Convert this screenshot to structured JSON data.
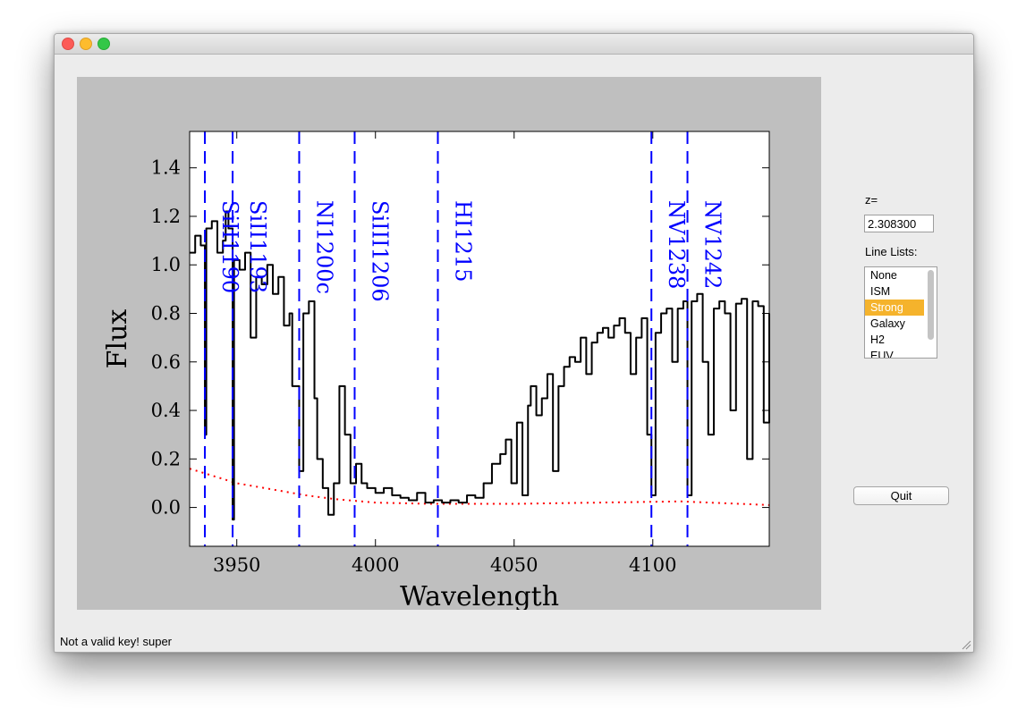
{
  "window": {
    "title": ""
  },
  "side_panel": {
    "z_label": "z=",
    "z_value": "2.308300",
    "line_lists_label": "Line Lists:",
    "line_lists": [
      "None",
      "ISM",
      "Strong",
      "Galaxy",
      "H2",
      "EUV"
    ],
    "selected_line_list": "Strong",
    "quit_label": "Quit"
  },
  "status": {
    "text": "Not a valid key!  super"
  },
  "colors": {
    "figure_bg": "#bfbfbf",
    "spectrum": "#000000",
    "lines": "#0000ff",
    "error": "#ff0000",
    "selection": "#f5b32c"
  },
  "chart_data": {
    "type": "line",
    "xlabel": "Wavelength",
    "ylabel": "Flux",
    "xlim": [
      3933,
      4142
    ],
    "ylim": [
      -0.16,
      1.55
    ],
    "xticks": [
      3950,
      4000,
      4050,
      4100
    ],
    "yticks": [
      0.0,
      0.2,
      0.4,
      0.6,
      0.8,
      1.0,
      1.2,
      1.4
    ],
    "ytick_labels": [
      "0.0",
      "0.2",
      "0.4",
      "0.6",
      "0.8",
      "1.0",
      "1.2",
      "1.4"
    ],
    "line_ids": [
      {
        "label": "SiII1190",
        "x": 3938.5
      },
      {
        "label": "SiII1193",
        "x": 3948.5
      },
      {
        "label": "NI1200c",
        "x": 3972.5
      },
      {
        "label": "SiIII1206",
        "x": 3992.5
      },
      {
        "label": "HI1215",
        "x": 4022.5
      },
      {
        "label": "NV1238",
        "x": 4099.5
      },
      {
        "label": "NV1242",
        "x": 4112.5
      }
    ],
    "series": [
      {
        "name": "",
        "x": [
          3933,
          3935,
          3937,
          3938.5,
          3939,
          3941,
          3943,
          3945,
          3946,
          3947,
          3948.5,
          3949,
          3951,
          3953,
          3955,
          3957,
          3959,
          3961,
          3963,
          3965,
          3967,
          3969,
          3970,
          3972.5,
          3974,
          3976,
          3978,
          3979,
          3981,
          3983,
          3985,
          3987,
          3989,
          3991,
          3993,
          3995,
          3997,
          4000,
          4003,
          4006,
          4009,
          4012,
          4015,
          4018,
          4021,
          4024,
          4027,
          4030,
          4033,
          4036,
          4039,
          4042,
          4045,
          4047,
          4049,
          4051,
          4053,
          4055,
          4056,
          4058,
          4060,
          4062,
          4064,
          4066,
          4068,
          4070,
          4072,
          4074,
          4076,
          4078,
          4080,
          4082,
          4084,
          4086,
          4088,
          4090,
          4092,
          4094,
          4096,
          4098,
          4099.5,
          4101,
          4103,
          4105,
          4107,
          4109,
          4111,
          4112.5,
          4114,
          4116,
          4118,
          4120,
          4122,
          4124,
          4126,
          4128,
          4130,
          4132,
          4134,
          4136,
          4138,
          4140,
          4142
        ],
        "values": [
          1.05,
          1.12,
          1.08,
          0.3,
          1.15,
          1.18,
          1.05,
          1.1,
          1.22,
          1.15,
          -0.05,
          1.02,
          0.98,
          1.05,
          0.7,
          0.95,
          0.92,
          1.0,
          0.88,
          0.95,
          0.75,
          0.8,
          0.5,
          0.15,
          0.8,
          0.85,
          0.45,
          0.2,
          0.08,
          -0.03,
          0.1,
          0.5,
          0.3,
          0.1,
          0.18,
          0.1,
          0.08,
          0.06,
          0.08,
          0.05,
          0.04,
          0.03,
          0.06,
          0.02,
          0.03,
          0.02,
          0.03,
          0.02,
          0.05,
          0.04,
          0.1,
          0.18,
          0.22,
          0.28,
          0.1,
          0.35,
          0.05,
          0.42,
          0.5,
          0.38,
          0.45,
          0.55,
          0.15,
          0.5,
          0.58,
          0.62,
          0.6,
          0.7,
          0.55,
          0.68,
          0.72,
          0.74,
          0.7,
          0.75,
          0.78,
          0.72,
          0.55,
          0.7,
          0.78,
          0.3,
          0.05,
          0.72,
          0.8,
          0.82,
          0.6,
          0.82,
          0.85,
          0.05,
          0.85,
          0.88,
          0.6,
          0.3,
          0.82,
          0.85,
          0.8,
          0.4,
          0.84,
          0.86,
          0.2,
          0.85,
          0.83,
          0.35,
          0.8
        ]
      },
      {
        "name": "",
        "x": [
          3933,
          3950,
          3965,
          3975,
          3985,
          4000,
          4020,
          4050,
          4080,
          4110,
          4142
        ],
        "values": [
          0.16,
          0.1,
          0.07,
          0.05,
          0.035,
          0.02,
          0.015,
          0.015,
          0.02,
          0.025,
          0.01
        ]
      }
    ]
  }
}
